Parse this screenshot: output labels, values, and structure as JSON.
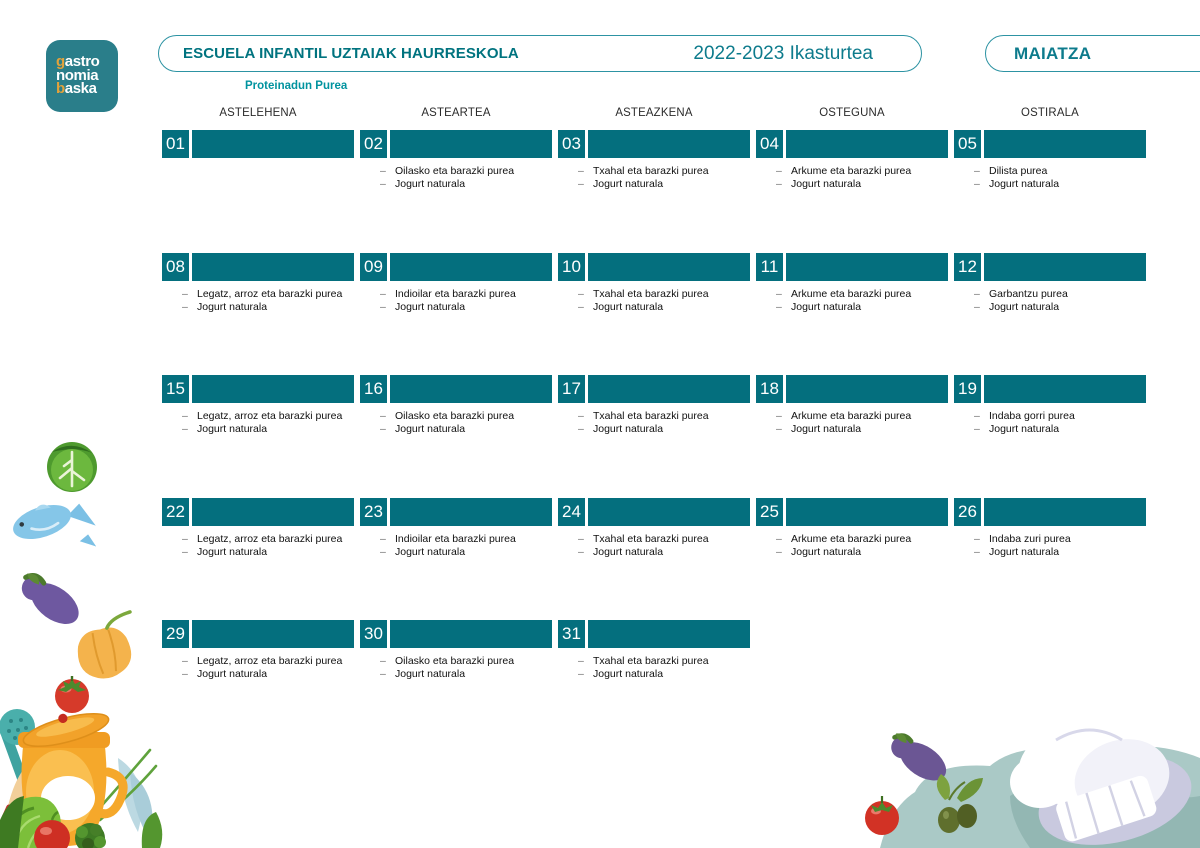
{
  "colors": {
    "teal_bar": "#046F7E",
    "teal_dark_text": "#00737F",
    "teal_medium_text": "#0D7B8C",
    "teal_subtitle": "#00939F",
    "logo_background": "#2A7E8A",
    "logo_accent": "#E2A23B"
  },
  "logo": {
    "name": "gastronomia baska",
    "lines": [
      {
        "first": "g",
        "rest": "astro",
        "first_color": "#E2A23B"
      },
      {
        "first": "n",
        "rest": "omia",
        "first_color": "#FFFFFF"
      },
      {
        "first": "b",
        "rest": "aska",
        "first_color": "#E2A23B"
      }
    ]
  },
  "header": {
    "school": "ESCUELA INFANTIL UZTAIAK HAURRESKOLA",
    "year": "2022-2023 Ikasturtea",
    "month": "MAIATZA",
    "menu_type": "Proteinadun Purea"
  },
  "weekdays": [
    "ASTELEHENA",
    "ASTEARTEA",
    "ASTEAZKENA",
    "OSTEGUNA",
    "OSTIRALA"
  ],
  "calendar": {
    "dash": "–",
    "weeks": [
      {
        "days": [
          {
            "num": "01",
            "items": []
          },
          {
            "num": "02",
            "items": [
              "Oilasko eta barazki purea",
              "Jogurt naturala"
            ]
          },
          {
            "num": "03",
            "items": [
              "Txahal eta barazki purea",
              "Jogurt naturala"
            ]
          },
          {
            "num": "04",
            "items": [
              "Arkume eta barazki purea",
              "Jogurt naturala"
            ]
          },
          {
            "num": "05",
            "items": [
              "Dilista purea",
              "Jogurt naturala"
            ]
          }
        ]
      },
      {
        "days": [
          {
            "num": "08",
            "items": [
              "Legatz, arroz eta barazki purea",
              "Jogurt naturala"
            ]
          },
          {
            "num": "09",
            "items": [
              "Indioilar eta barazki purea",
              "Jogurt naturala"
            ]
          },
          {
            "num": "10",
            "items": [
              "Txahal eta barazki purea",
              "Jogurt naturala"
            ]
          },
          {
            "num": "11",
            "items": [
              "Arkume eta barazki purea",
              "Jogurt naturala"
            ]
          },
          {
            "num": "12",
            "items": [
              "Garbantzu purea",
              "Jogurt naturala"
            ]
          }
        ]
      },
      {
        "days": [
          {
            "num": "15",
            "items": [
              "Legatz, arroz eta barazki purea",
              "Jogurt naturala"
            ]
          },
          {
            "num": "16",
            "items": [
              "Oilasko eta barazki purea",
              "Jogurt naturala"
            ]
          },
          {
            "num": "17",
            "items": [
              "Txahal eta barazki purea",
              "Jogurt naturala"
            ]
          },
          {
            "num": "18",
            "items": [
              "Arkume eta barazki purea",
              "Jogurt naturala"
            ]
          },
          {
            "num": "19",
            "items": [
              "Indaba gorri purea",
              "Jogurt naturala"
            ]
          }
        ]
      },
      {
        "days": [
          {
            "num": "22",
            "items": [
              "Legatz, arroz eta barazki purea",
              "Jogurt naturala"
            ]
          },
          {
            "num": "23",
            "items": [
              "Indioilar eta barazki purea",
              "Jogurt naturala"
            ]
          },
          {
            "num": "24",
            "items": [
              "Txahal eta barazki purea",
              "Jogurt naturala"
            ]
          },
          {
            "num": "25",
            "items": [
              "Arkume eta barazki purea",
              "Jogurt naturala"
            ]
          },
          {
            "num": "26",
            "items": [
              "Indaba zuri purea",
              "Jogurt naturala"
            ]
          }
        ]
      },
      {
        "days": [
          {
            "num": "29",
            "items": [
              "Legatz, arroz eta barazki purea",
              "Jogurt naturala"
            ]
          },
          {
            "num": "30",
            "items": [
              "Oilasko eta barazki purea",
              "Jogurt naturala"
            ]
          },
          {
            "num": "31",
            "items": [
              "Txahal eta barazki purea",
              "Jogurt naturala"
            ]
          }
        ]
      }
    ]
  },
  "decorations": {
    "left_column": [
      "cabbage-illustration",
      "fish-illustration",
      "eggplant-illustration",
      "pepper-illustration",
      "tomato-illustration",
      "skimmer-ladle-illustration",
      "cooking-pot-illustration",
      "lettuce-illustration",
      "broccoli-illustration"
    ],
    "bottom_right": [
      "eggplant-illustration",
      "tomato-illustration",
      "olives-illustration",
      "chef-hat-illustration"
    ]
  }
}
